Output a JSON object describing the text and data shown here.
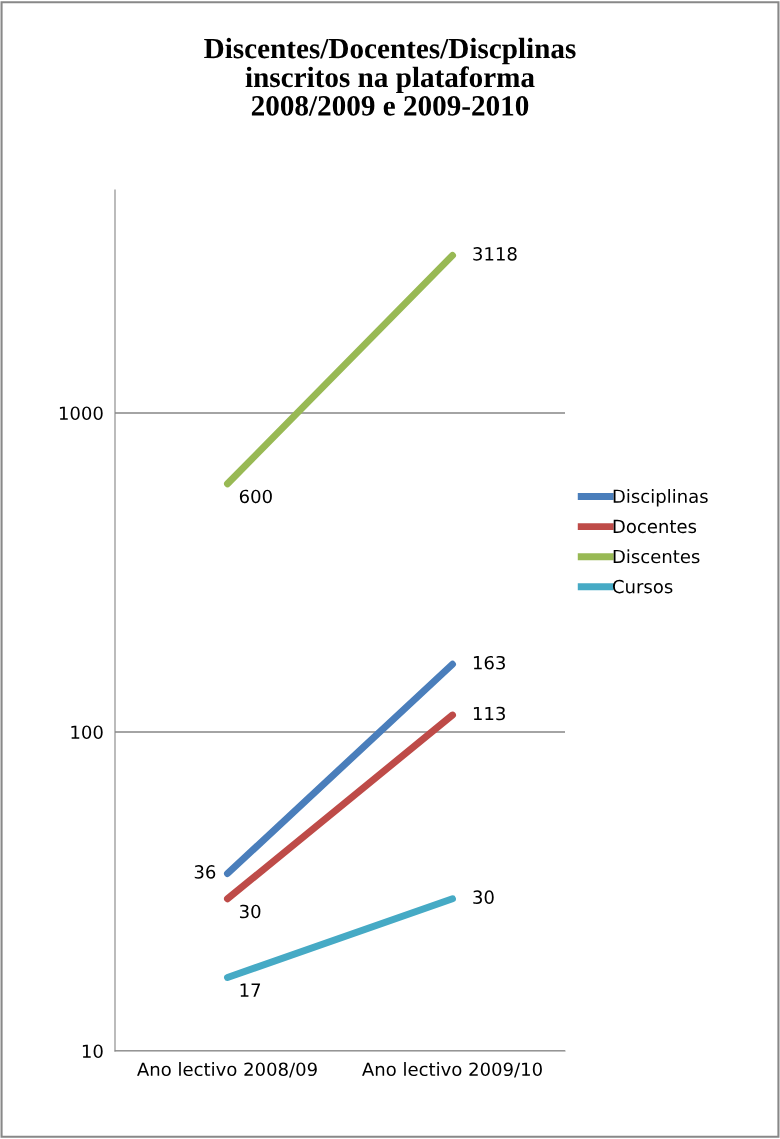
{
  "chart_data": {
    "type": "line",
    "title": "Discentes/Docentes/Discplinas\ninscritos na plataforma\n2008/2009 e 2009-2010",
    "categories": [
      "Ano lectivo 2008/09",
      "Ano lectivo 2009/10"
    ],
    "series": [
      {
        "name": "Disciplinas",
        "color": "#4a7ebb",
        "values": [
          36,
          163
        ]
      },
      {
        "name": "Docentes",
        "color": "#be4b48",
        "values": [
          30,
          113
        ]
      },
      {
        "name": "Discentes",
        "color": "#98b954",
        "values": [
          600,
          3118
        ]
      },
      {
        "name": "Cursos",
        "color": "#46aac5",
        "values": [
          17,
          30
        ]
      }
    ],
    "log": true,
    "ylim": [
      10,
      5000
    ],
    "yticks": [
      10,
      100,
      1000
    ],
    "grid": "y",
    "legend": "right",
    "data_labels": true,
    "marker": "none",
    "line_style": "solid"
  }
}
